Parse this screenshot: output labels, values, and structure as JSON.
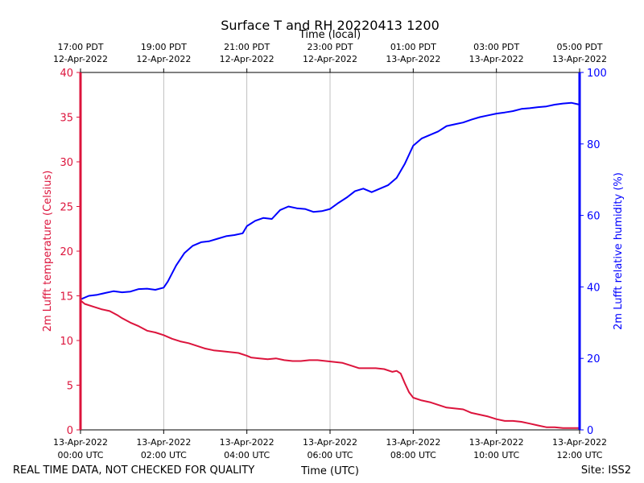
{
  "chart_data": {
    "type": "line",
    "title": "Surface T and RH 20220413 1200",
    "top_axis_label": "Time (local)",
    "xlabel": "Time (UTC)",
    "ylabel_left": "2m Lufft temperature (Celsius)",
    "ylabel_right": "2m Lufft relative humidity (%)",
    "xlim_hours": [
      0,
      12
    ],
    "ylim_left": [
      0,
      40
    ],
    "ylim_right": [
      0,
      100
    ],
    "left_ticks": [
      0,
      5,
      10,
      15,
      20,
      25,
      30,
      35,
      40
    ],
    "right_ticks": [
      0,
      20,
      40,
      60,
      80,
      100
    ],
    "bottom_ticks": [
      {
        "hour": 0,
        "line1": "13-Apr-2022",
        "line2": "00:00 UTC"
      },
      {
        "hour": 2,
        "line1": "13-Apr-2022",
        "line2": "02:00 UTC"
      },
      {
        "hour": 4,
        "line1": "13-Apr-2022",
        "line2": "04:00 UTC"
      },
      {
        "hour": 6,
        "line1": "13-Apr-2022",
        "line2": "06:00 UTC"
      },
      {
        "hour": 8,
        "line1": "13-Apr-2022",
        "line2": "08:00 UTC"
      },
      {
        "hour": 10,
        "line1": "13-Apr-2022",
        "line2": "10:00 UTC"
      },
      {
        "hour": 12,
        "line1": "13-Apr-2022",
        "line2": "12:00 UTC"
      }
    ],
    "top_ticks": [
      {
        "hour": 0,
        "line1": "17:00 PDT",
        "line2": "12-Apr-2022"
      },
      {
        "hour": 2,
        "line1": "19:00 PDT",
        "line2": "12-Apr-2022"
      },
      {
        "hour": 4,
        "line1": "21:00 PDT",
        "line2": "12-Apr-2022"
      },
      {
        "hour": 6,
        "line1": "23:00 PDT",
        "line2": "12-Apr-2022"
      },
      {
        "hour": 8,
        "line1": "01:00 PDT",
        "line2": "13-Apr-2022"
      },
      {
        "hour": 10,
        "line1": "03:00 PDT",
        "line2": "13-Apr-2022"
      },
      {
        "hour": 12,
        "line1": "05:00 PDT",
        "line2": "13-Apr-2022"
      }
    ],
    "grid": "vertical",
    "series": [
      {
        "name": "2m Lufft temperature",
        "axis": "left",
        "color": "#DC143C",
        "x": [
          0,
          0.1,
          0.3,
          0.5,
          0.7,
          0.9,
          1.0,
          1.2,
          1.4,
          1.6,
          1.8,
          2.0,
          2.2,
          2.4,
          2.6,
          2.8,
          3.0,
          3.2,
          3.4,
          3.6,
          3.8,
          4.0,
          4.1,
          4.3,
          4.5,
          4.7,
          4.9,
          5.1,
          5.3,
          5.5,
          5.7,
          5.9,
          6.1,
          6.3,
          6.5,
          6.7,
          6.9,
          7.1,
          7.3,
          7.5,
          7.6,
          7.7,
          7.8,
          7.9,
          8.0,
          8.2,
          8.4,
          8.6,
          8.8,
          9.0,
          9.2,
          9.4,
          9.6,
          9.8,
          10.0,
          10.2,
          10.4,
          10.6,
          10.8,
          11.0,
          11.2,
          11.4,
          11.6,
          11.8,
          12.0
        ],
        "values": [
          14.5,
          14.1,
          13.8,
          13.5,
          13.3,
          12.8,
          12.5,
          12.0,
          11.6,
          11.1,
          10.9,
          10.6,
          10.2,
          9.9,
          9.7,
          9.4,
          9.1,
          8.9,
          8.8,
          8.7,
          8.6,
          8.3,
          8.1,
          8.0,
          7.9,
          8.0,
          7.8,
          7.7,
          7.7,
          7.8,
          7.8,
          7.7,
          7.6,
          7.5,
          7.2,
          6.9,
          6.9,
          6.9,
          6.8,
          6.5,
          6.6,
          6.3,
          5.2,
          4.2,
          3.6,
          3.3,
          3.1,
          2.8,
          2.5,
          2.4,
          2.3,
          1.9,
          1.7,
          1.5,
          1.2,
          1.0,
          1.0,
          0.9,
          0.7,
          0.5,
          0.3,
          0.3,
          0.2,
          0.2,
          0.2
        ]
      },
      {
        "name": "2m Lufft relative humidity",
        "axis": "right",
        "color": "#0000FF",
        "x": [
          0,
          0.2,
          0.4,
          0.6,
          0.8,
          1.0,
          1.2,
          1.4,
          1.6,
          1.8,
          2.0,
          2.1,
          2.3,
          2.5,
          2.7,
          2.9,
          3.1,
          3.3,
          3.5,
          3.7,
          3.9,
          4.0,
          4.2,
          4.4,
          4.6,
          4.8,
          5.0,
          5.2,
          5.4,
          5.6,
          5.8,
          6.0,
          6.2,
          6.4,
          6.6,
          6.8,
          7.0,
          7.2,
          7.4,
          7.6,
          7.8,
          8.0,
          8.2,
          8.4,
          8.6,
          8.8,
          9.0,
          9.2,
          9.4,
          9.6,
          9.8,
          10.0,
          10.2,
          10.4,
          10.6,
          10.8,
          11.0,
          11.2,
          11.4,
          11.6,
          11.8,
          12.0
        ],
        "values": [
          36.5,
          37.5,
          37.8,
          38.3,
          38.8,
          38.5,
          38.7,
          39.4,
          39.5,
          39.2,
          39.8,
          41.5,
          46.0,
          49.5,
          51.5,
          52.5,
          52.8,
          53.5,
          54.2,
          54.5,
          55.0,
          57.0,
          58.5,
          59.3,
          59.0,
          61.5,
          62.5,
          62.0,
          61.8,
          61.0,
          61.2,
          61.8,
          63.5,
          65.0,
          66.8,
          67.5,
          66.5,
          67.5,
          68.5,
          70.5,
          74.5,
          79.5,
          81.5,
          82.5,
          83.5,
          85.0,
          85.5,
          86.0,
          86.8,
          87.5,
          88.0,
          88.5,
          88.8,
          89.2,
          89.8,
          90.0,
          90.3,
          90.5,
          91.0,
          91.3,
          91.5,
          91.0
        ]
      }
    ]
  },
  "footer": {
    "disclaimer": "REAL TIME DATA, NOT CHECKED FOR QUALITY",
    "site": "Site: ISS2"
  },
  "colors": {
    "temperature": "#DC143C",
    "humidity": "#0000FF",
    "grid": "#B0B0B0",
    "axis": "#000000"
  }
}
